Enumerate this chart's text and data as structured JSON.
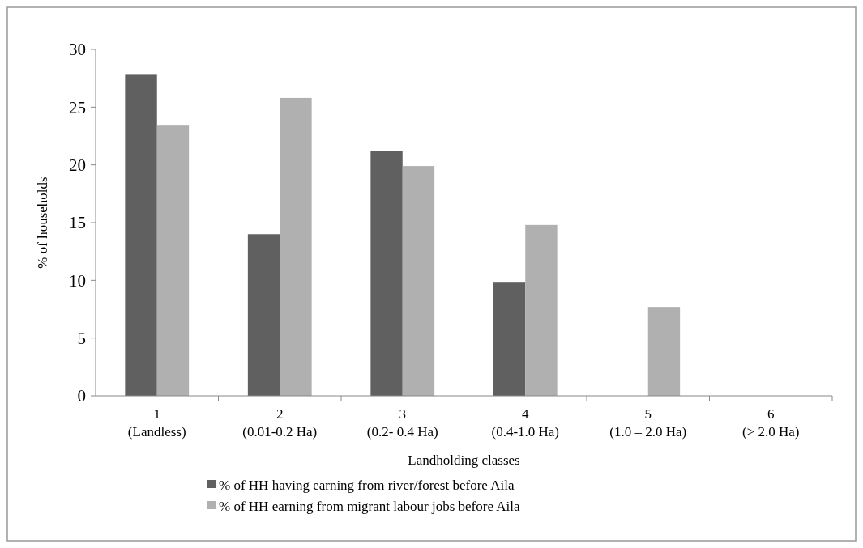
{
  "chart_data": {
    "type": "bar",
    "xlabel": "Landholding classes",
    "ylabel": "% of households",
    "categories": [
      "1\n(Landless)",
      "2\n(0.01-0.2 Ha)",
      "3\n(0.2- 0.4 Ha)",
      "4\n(0.4-1.0 Ha)",
      "5\n(1.0 – 2.0 Ha)",
      "6\n(> 2.0 Ha)"
    ],
    "series": [
      {
        "name": "% of HH having earning from river/forest before Aila",
        "color": "#606060",
        "values": [
          27.8,
          14.0,
          21.2,
          9.8,
          0,
          0
        ]
      },
      {
        "name": "% of HH earning from migrant labour jobs before Aila",
        "color": "#b0b0b0",
        "values": [
          23.4,
          25.8,
          19.9,
          14.8,
          7.7,
          0
        ]
      }
    ],
    "ylim": [
      0,
      30
    ],
    "yticks": [
      0,
      5,
      10,
      15,
      20,
      25,
      30
    ],
    "grid": false,
    "legend": "bottom"
  }
}
